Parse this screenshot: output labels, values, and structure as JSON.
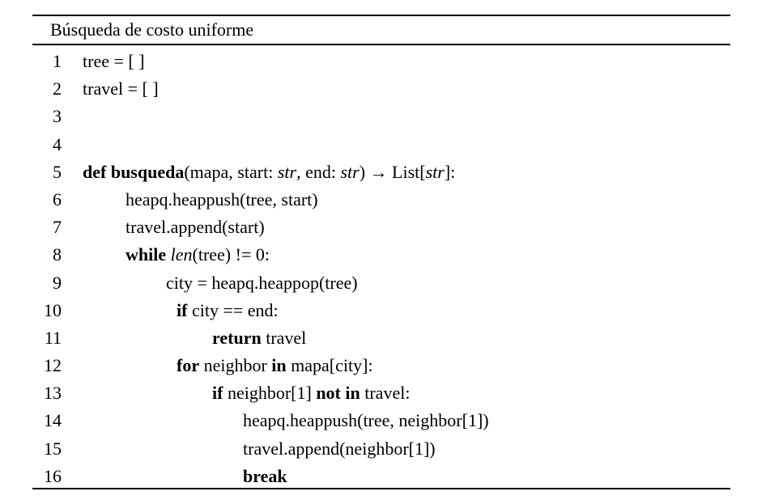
{
  "algorithm": {
    "title": "Búsqueda de costo uniforme",
    "lines": [
      {
        "num": "1",
        "code": "tree = [ ]"
      },
      {
        "num": "2",
        "code": "travel = [ ]"
      },
      {
        "num": "3",
        "code": ""
      },
      {
        "num": "4",
        "code": ""
      },
      {
        "num": "5",
        "kw1": "def",
        "fname": "busqueda",
        "a1": "(mapa, start: ",
        "t1": "str",
        "a2": ", end: ",
        "t2": "str",
        "a3": ") → List[",
        "t3": "str",
        "a4": "]:"
      },
      {
        "num": "6",
        "code": "heapq.heappush(tree, start)"
      },
      {
        "num": "7",
        "code": "travel.append(start)"
      },
      {
        "num": "8",
        "kw": "while",
        "fn": "len",
        "rest": "(tree) != 0:"
      },
      {
        "num": "9",
        "code": "city = heapq.heappop(tree)"
      },
      {
        "num": "10",
        "kw": "if",
        "rest": "city == end:"
      },
      {
        "num": "11",
        "kw": "return",
        "rest": "travel"
      },
      {
        "num": "12",
        "kw": "for",
        "mid": "neighbor",
        "kw2": "in",
        "rest": "mapa[city]:"
      },
      {
        "num": "13",
        "kw": "if",
        "mid": "neighbor[1]",
        "kw2": "not in",
        "rest": "travel:"
      },
      {
        "num": "14",
        "code": "heapq.heappush(tree, neighbor[1])"
      },
      {
        "num": "15",
        "code": "travel.append(neighbor[1])"
      },
      {
        "num": "16",
        "kw": "break"
      }
    ]
  }
}
